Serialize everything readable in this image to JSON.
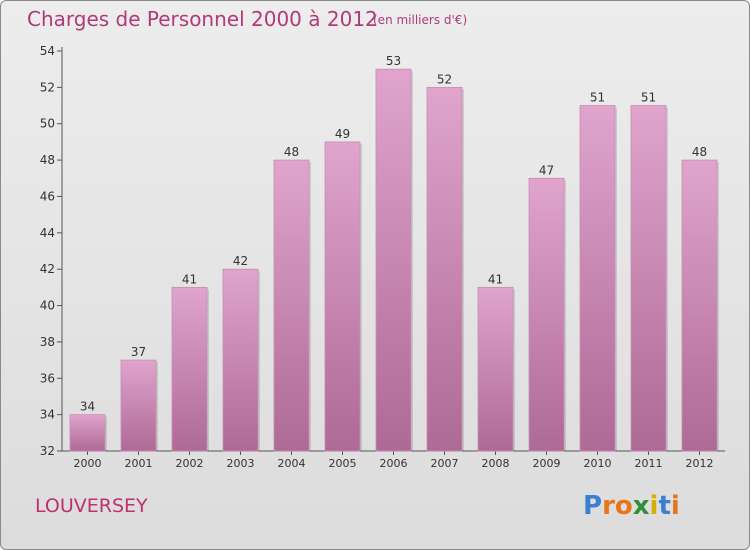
{
  "title": "Charges de Personnel 2000 à 2012",
  "subtitle": "(en milliers d'€)",
  "commune": "LOUVERSEY",
  "logo": {
    "letters": [
      "P",
      "r",
      "o",
      "x",
      "i",
      "t",
      "i"
    ],
    "colors": [
      "#3a7fd0",
      "#e8751a",
      "#e8751a",
      "#2f8f3a",
      "#d4b000",
      "#3a7fd0",
      "#e8751a"
    ]
  },
  "colors": {
    "bar_top": "#e0a4cd",
    "bar_bottom": "#ad6a95",
    "title": "#b03a7a"
  },
  "chart_data": {
    "type": "bar",
    "categories": [
      "2000",
      "2001",
      "2002",
      "2003",
      "2004",
      "2005",
      "2006",
      "2007",
      "2008",
      "2009",
      "2010",
      "2011",
      "2012"
    ],
    "values": [
      34,
      37,
      41,
      42,
      48,
      49,
      53,
      52,
      41,
      47,
      51,
      51,
      48
    ],
    "ylim": [
      32,
      54
    ],
    "yticks": [
      32,
      34,
      36,
      38,
      40,
      42,
      44,
      46,
      48,
      50,
      52,
      54
    ],
    "grid": false,
    "xlabel": "",
    "ylabel": ""
  }
}
